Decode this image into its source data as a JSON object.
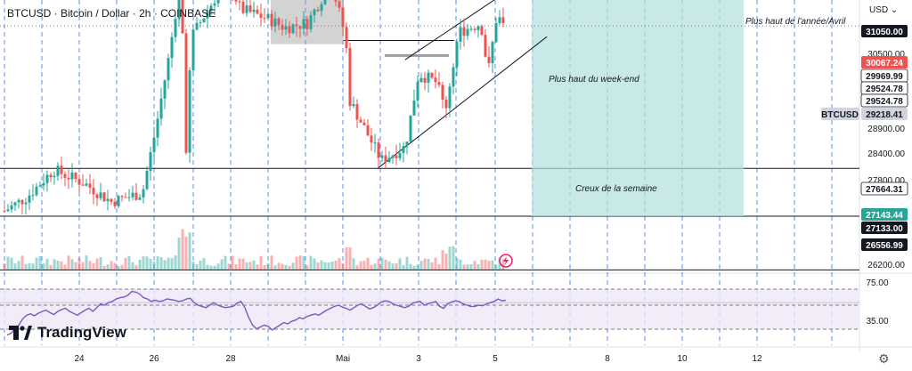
{
  "header": {
    "symbol": "BTCUSD",
    "sep1": " · ",
    "name": "Bitcoin / Dollar",
    "sep2": " · ",
    "interval": "2h",
    "sep3": " · ",
    "exchange": "COINBASE",
    "currency": "USD",
    "currency_chevron": "chevron-down-icon"
  },
  "logo": {
    "text": "TradingView",
    "icon": "tradingview-logo-icon"
  },
  "settings_icon": "gear-icon",
  "colors": {
    "up": "#26a69a",
    "down": "#ef5350",
    "grid_dash": "#2962ff",
    "rsi_line": "#7e57c2",
    "rsi_band": "#ede7f6",
    "resistance_zone": "#f4b7b4",
    "support_zone": "#b2dfdb",
    "price_tag": "#ef5350"
  },
  "chart_data": {
    "type": "candlestick",
    "symbol": "BTCUSD",
    "timeframe": "2h",
    "x_ticks": [
      "24",
      "26",
      "28",
      "Mai",
      "3",
      "5",
      "8",
      "10",
      "12"
    ],
    "y_ticks": [
      26200.0,
      27800.0,
      28400.0,
      28900.0,
      30500.0
    ],
    "y_range": [
      26200,
      31400
    ],
    "price_levels": [
      {
        "label": "31050.00",
        "style": "dark"
      },
      {
        "label": "30067.24",
        "style": "red"
      },
      {
        "label": "29969.99",
        "style": "light"
      },
      {
        "label": "29524.78",
        "style": "light"
      },
      {
        "label": "29524.78",
        "style": "light"
      },
      {
        "label": "29218.41",
        "style": "current",
        "tag": "BTCUSD"
      },
      {
        "label": "27664.31",
        "style": "light"
      },
      {
        "label": "27143.44",
        "style": "green"
      },
      {
        "label": "27133.00",
        "style": "dark"
      },
      {
        "label": "26556.99",
        "style": "dark"
      }
    ],
    "annotations": [
      {
        "text": "Plus haut de l'année/Avril"
      },
      {
        "text": "Plus haut du week-end"
      },
      {
        "text": "Creux de la semaine"
      }
    ],
    "rsi": {
      "y_ticks": [
        75.0,
        35.0
      ],
      "upper": 70,
      "lower": 30,
      "values": [
        12,
        15,
        22,
        28,
        38,
        44,
        46,
        43,
        47,
        50,
        52,
        48,
        45,
        50,
        53,
        55,
        50,
        47,
        44,
        48,
        52,
        55,
        50,
        56,
        62,
        60,
        64,
        66,
        70,
        72,
        73,
        76,
        82,
        81,
        78,
        72,
        70,
        66,
        68,
        66,
        67,
        70,
        69,
        68,
        66,
        67,
        70,
        71,
        64,
        60,
        58,
        56,
        60,
        64,
        60,
        58,
        56,
        57,
        58,
        63,
        66,
        56,
        40,
        28,
        22,
        25,
        28,
        26,
        20,
        24,
        28,
        32,
        30,
        34,
        36,
        40,
        38,
        42,
        44,
        46,
        44,
        48,
        52,
        55,
        58,
        60,
        57,
        55,
        52,
        56,
        60,
        62,
        58,
        54,
        56,
        60,
        65,
        67,
        66,
        62,
        60,
        58,
        56,
        58,
        63,
        65,
        66,
        60,
        62,
        64,
        66,
        58,
        55,
        62,
        65,
        67,
        66,
        62,
        60,
        58,
        58,
        60,
        59,
        62,
        64,
        66,
        70,
        67,
        68
      ]
    }
  }
}
